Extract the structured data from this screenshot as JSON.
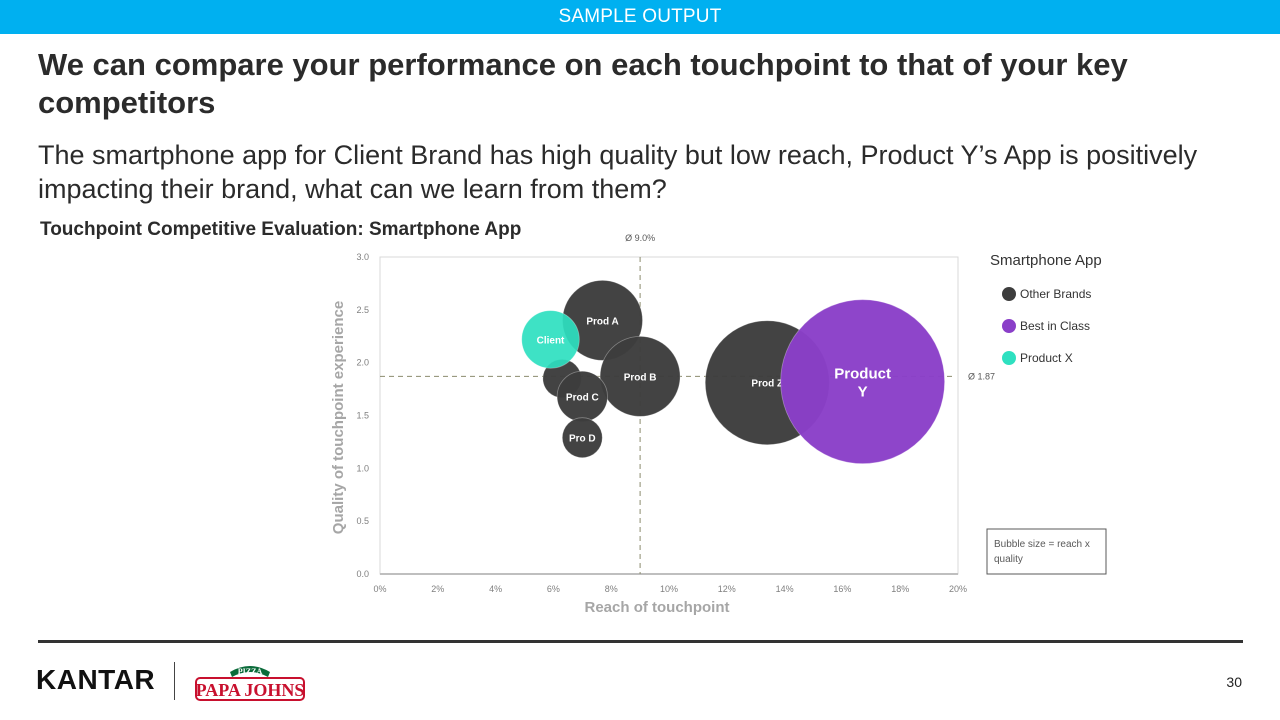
{
  "banner": {
    "text": "SAMPLE OUTPUT"
  },
  "headline": "We can compare your performance on each touchpoint to that of your key competitors",
  "subhead": "The smartphone app for Client Brand has high quality but low reach, Product Y’s App is positively impacting their brand, what can we learn from them?",
  "chart_title": "Touchpoint Competitive Evaluation: Smartphone App",
  "chart_data": {
    "type": "scatter",
    "subtype": "bubble",
    "xlabel": "Reach of touchpoint",
    "ylabel": "Quality of touchpoint experience",
    "xlim": [
      0,
      20
    ],
    "ylim": [
      0,
      3.0
    ],
    "x_ticks": [
      0,
      2,
      4,
      6,
      8,
      10,
      12,
      14,
      16,
      18,
      20
    ],
    "x_tick_labels": [
      "0%",
      "2%",
      "4%",
      "6%",
      "8%",
      "10%",
      "12%",
      "14%",
      "16%",
      "18%",
      "20%"
    ],
    "y_ticks": [
      0,
      0.5,
      1.0,
      1.5,
      2.0,
      2.5,
      3.0
    ],
    "y_tick_labels": [
      "0.0",
      "0.5",
      "1.0",
      "1.5",
      "2.0",
      "2.5",
      "3.0"
    ],
    "avg_x": {
      "value": 9.0,
      "label": "Ø 9.0%"
    },
    "avg_y": {
      "value": 1.87,
      "label": "Ø 1.87"
    },
    "legend": {
      "title": "Smartphone App",
      "position": "right",
      "items": [
        {
          "label": "Other Brands",
          "color": "#3d3d3d"
        },
        {
          "label": "Best in Class",
          "color": "#8a3fc8"
        },
        {
          "label": "Product X",
          "color": "#2ee0c0"
        }
      ]
    },
    "note": "Bubble size = reach x quality",
    "series": [
      {
        "name": "Other Brands",
        "color": "#3d3d3d",
        "points": [
          {
            "label": "Prod A",
            "x": 7.7,
            "y": 2.4,
            "size": 1.0
          },
          {
            "label": "Prod B",
            "x": 9.0,
            "y": 1.87,
            "size": 1.0
          },
          {
            "label": "Prod Z",
            "x": 13.4,
            "y": 1.81,
            "size": 1.55
          },
          {
            "label": "",
            "x": 6.3,
            "y": 1.85,
            "size": 0.48
          },
          {
            "label": "Prod C",
            "x": 7.0,
            "y": 1.68,
            "size": 0.63
          },
          {
            "label": "Pro D",
            "x": 7.0,
            "y": 1.29,
            "size": 0.5
          }
        ]
      },
      {
        "name": "Best in Class",
        "color": "#8a3fc8",
        "points": [
          {
            "label": "Product Y",
            "x": 16.7,
            "y": 1.82,
            "size": 2.05
          }
        ]
      },
      {
        "name": "Product X",
        "color": "#2ee0c0",
        "points": [
          {
            "label": "Client",
            "x": 5.9,
            "y": 2.22,
            "size": 0.72
          }
        ]
      }
    ]
  },
  "footer": {
    "brand": "KANTAR",
    "partner_logo_top": "PIZZA",
    "partner_logo_main": "PAPA JOHNS",
    "page_number": "30"
  }
}
